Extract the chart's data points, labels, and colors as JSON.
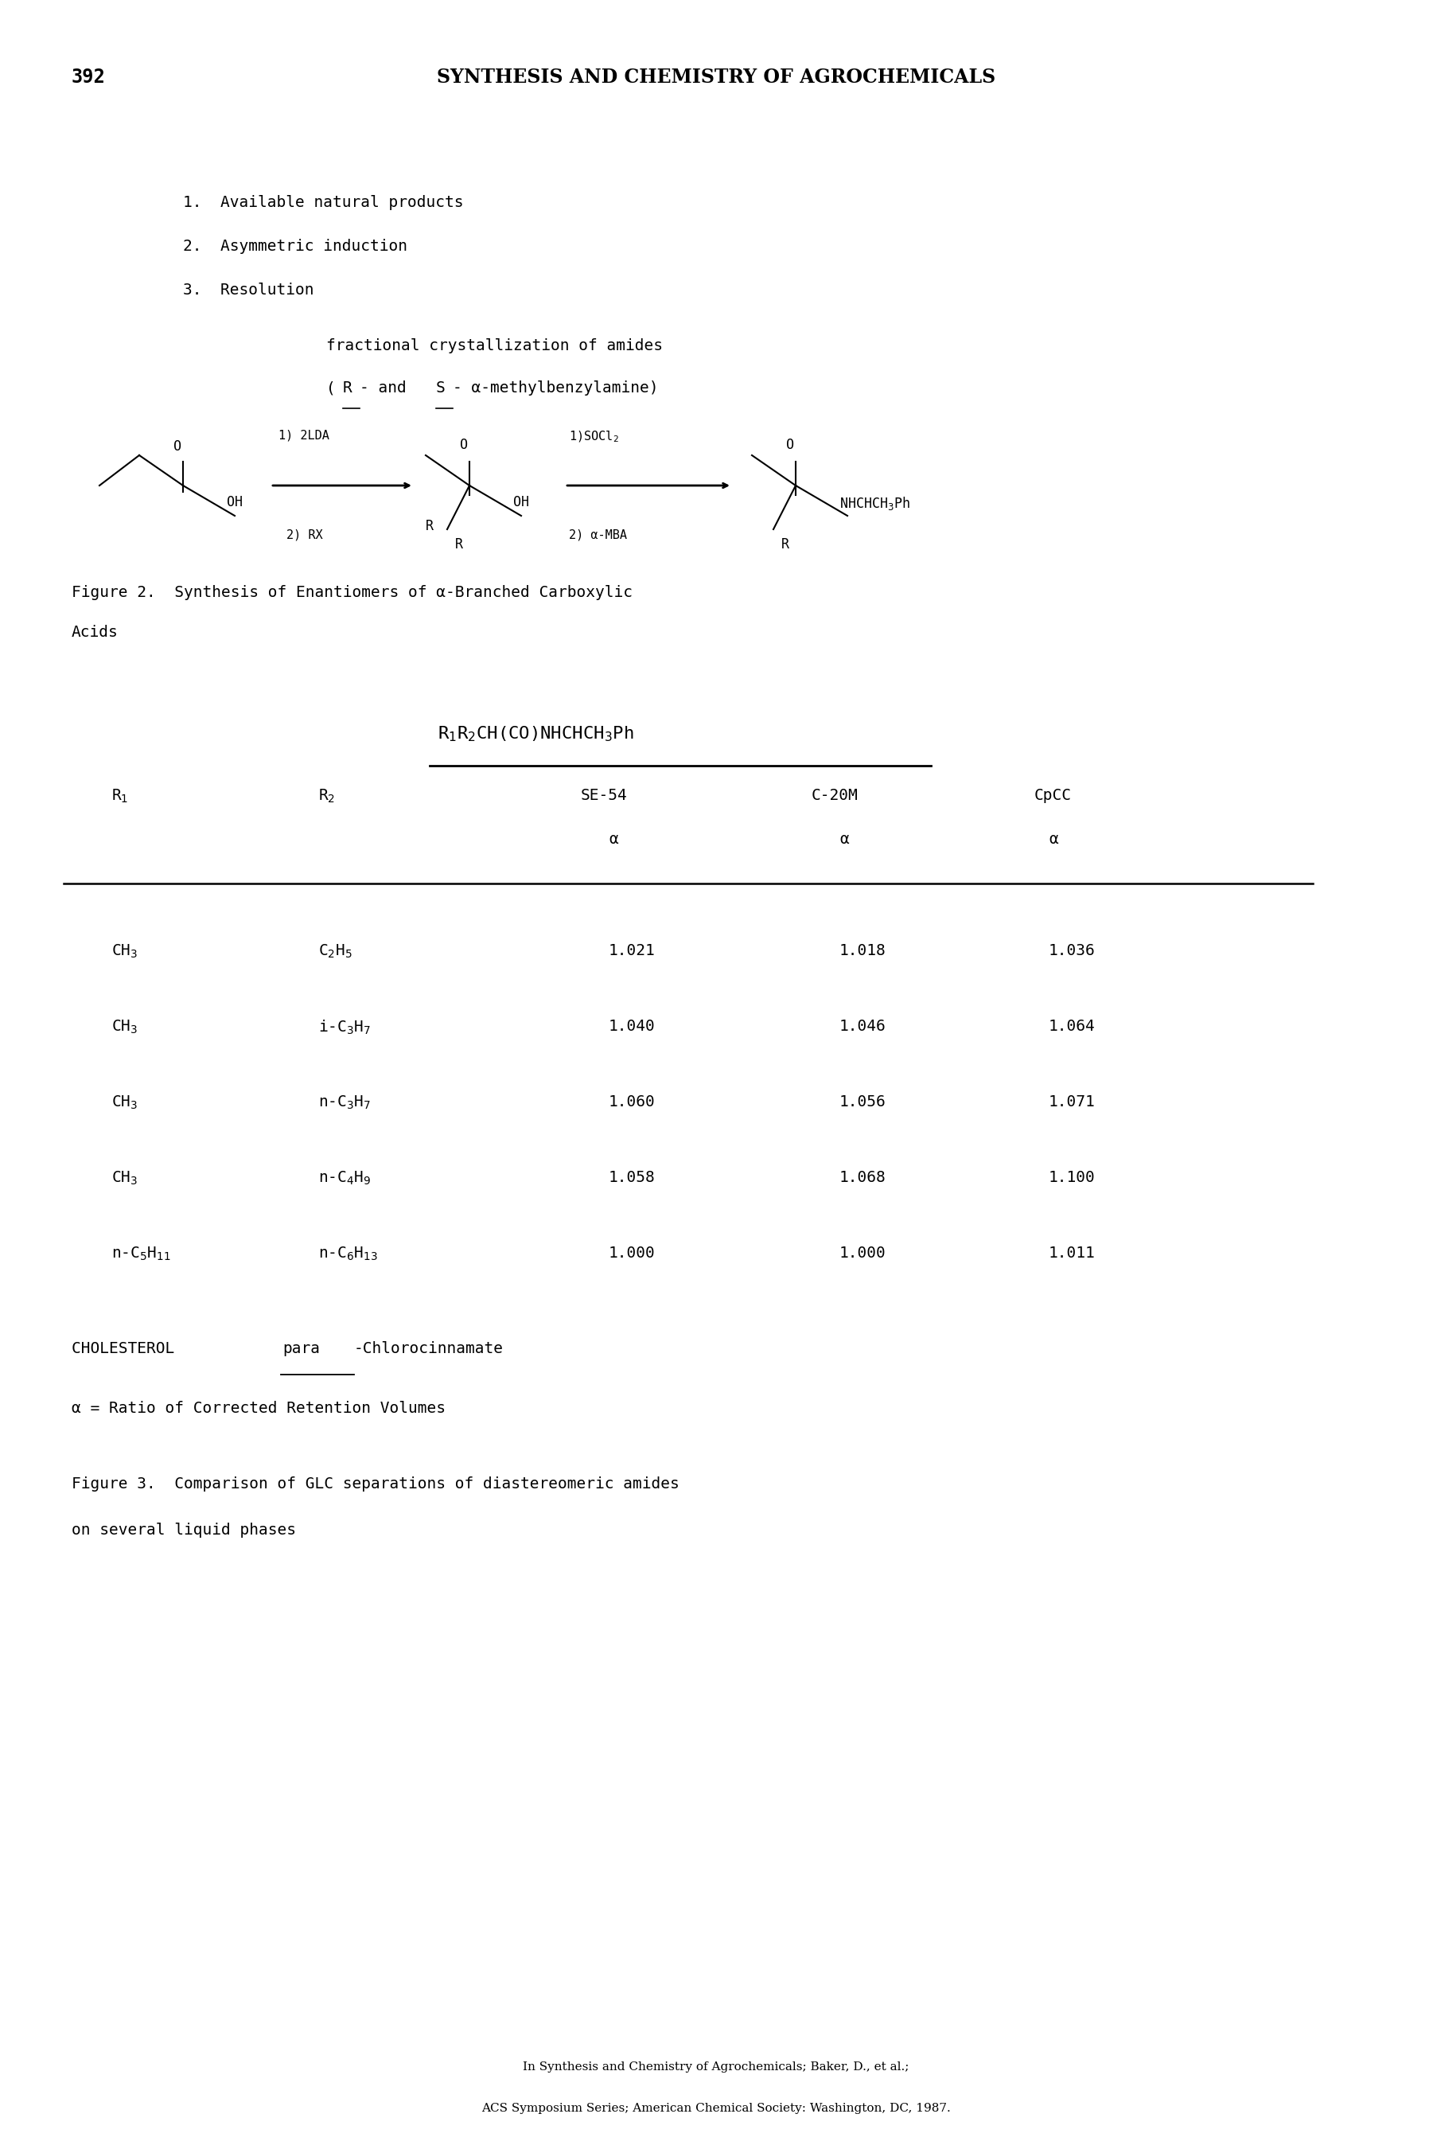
{
  "page_number": "392",
  "header_title": "SYNTHESIS AND CHEMISTRY OF AGROCHEMICALS",
  "list_items": [
    "1.  Available natural products",
    "2.  Asymmetric induction",
    "3.  Resolution"
  ],
  "resolution_text1": "fractional crystallization of amides",
  "fig2_caption_line1": "Figure 2.  Synthesis of Enantiomers of α-Branched Carboxylic",
  "fig2_caption_line2": "Acids",
  "cholesterol_line": "CHOLESTEROL ",
  "cholesterol_para": "para",
  "cholesterol_rest": "-Chlorocinnamate",
  "alpha_text": "α = Ratio of Corrected Retention Volumes",
  "fig3_caption_line1": "Figure 3.  Comparison of GLC separations of diastereomeric amides",
  "fig3_caption_line2": "on several liquid phases",
  "footer_line1": "In Synthesis and Chemistry of Agrochemicals; Baker, D., et al.;",
  "footer_line2": "ACS Symposium Series; American Chemical Society: Washington, DC, 1987.",
  "table_rows": [
    [
      "CH$_3$",
      "C$_2$H$_5$",
      "1.021",
      "1.018",
      "1.036"
    ],
    [
      "CH$_3$",
      "i-C$_3$H$_7$",
      "1.040",
      "1.046",
      "1.064"
    ],
    [
      "CH$_3$",
      "n-C$_3$H$_7$",
      "1.060",
      "1.056",
      "1.071"
    ],
    [
      "CH$_3$",
      "n-C$_4$H$_9$",
      "1.058",
      "1.068",
      "1.100"
    ],
    [
      "n-C$_5$H$_{11}$",
      "n-C$_6$H$_{13}$",
      "1.000",
      "1.000",
      "1.011"
    ]
  ],
  "bg_color": "#ffffff"
}
